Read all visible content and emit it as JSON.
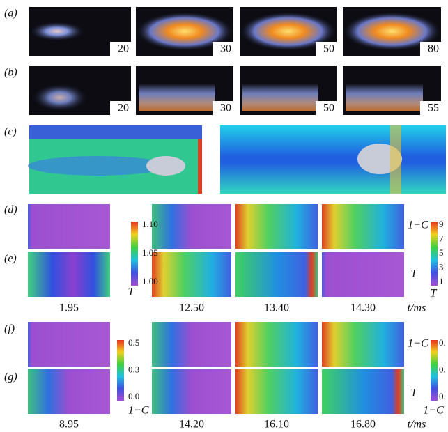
{
  "panels": [
    {
      "label": "(a)",
      "frames": [
        "20",
        "30",
        "50",
        "80"
      ]
    },
    {
      "label": "(b)",
      "frames": [
        "20",
        "30",
        "50",
        "55"
      ]
    },
    {
      "label": "(c)"
    },
    {
      "label": "(d)"
    },
    {
      "label": "(e)"
    },
    {
      "label": "(f)"
    },
    {
      "label": "(g)"
    }
  ],
  "colorbars": [
    {
      "ticks": [
        "1.10",
        "1.05",
        "1.00"
      ],
      "titles": [
        "T"
      ]
    },
    {
      "ticks": [
        "9",
        "7",
        "5",
        "3",
        "1"
      ],
      "titles": [
        "1−C",
        "T",
        "T"
      ]
    },
    {
      "ticks": [
        "0.5",
        "0.3",
        "0.0"
      ],
      "titles": [
        "1−C"
      ]
    },
    {
      "ticks": [
        "0.",
        "0.",
        "0."
      ],
      "titles": [
        "1−C",
        "T",
        "1−C"
      ]
    }
  ],
  "times": [
    {
      "values": [
        "1.95",
        "12.50",
        "13.40",
        "14.30"
      ],
      "unit": "t/ms"
    },
    {
      "values": [
        "8.95",
        "14.20",
        "16.10",
        "16.80"
      ],
      "unit": "t/ms"
    }
  ]
}
